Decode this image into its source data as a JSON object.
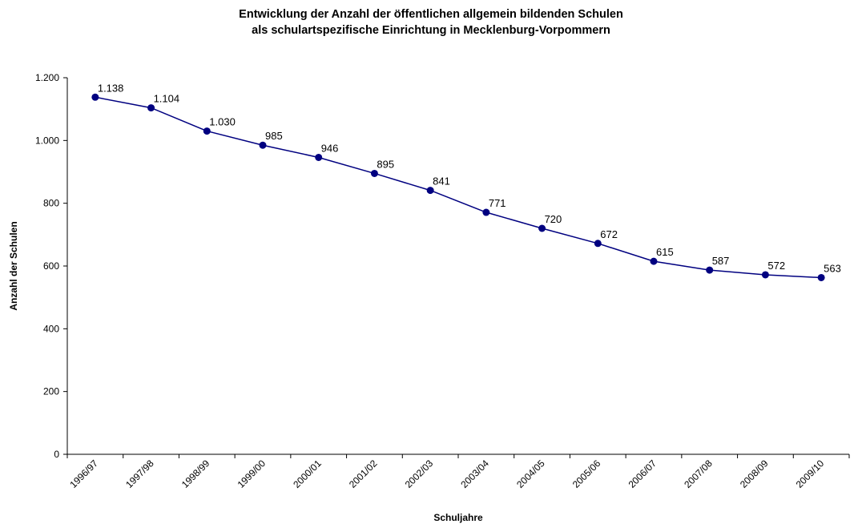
{
  "chart_data": {
    "type": "line",
    "title": [
      "Entwicklung der Anzahl der öffentlichen allgemein bildenden Schulen",
      "als schulartspezifische Einrichtung in Mecklenburg-Vorpommern"
    ],
    "xlabel": "Schuljahre",
    "ylabel": "Anzahl der Schulen",
    "categories": [
      "1996/97",
      "1997/98",
      "1998/99",
      "1999/00",
      "2000/01",
      "2001/02",
      "2002/03",
      "2003/04",
      "2004/05",
      "2005/06",
      "2006/07",
      "2007/08",
      "2008/09",
      "2009/10"
    ],
    "series": [
      {
        "values": [
          1138,
          1104,
          1030,
          985,
          946,
          895,
          841,
          771,
          720,
          672,
          615,
          587,
          572,
          563
        ],
        "labels": [
          "1.138",
          "1.104",
          "1.030",
          "985",
          "946",
          "895",
          "841",
          "771",
          "720",
          "672",
          "615",
          "587",
          "572",
          "563"
        ],
        "color": "#000080"
      }
    ],
    "ylim": [
      0,
      1200
    ],
    "yticks": [
      0,
      200,
      400,
      600,
      800,
      1000,
      1200
    ],
    "ytick_labels": [
      "0",
      "200",
      "400",
      "600",
      "800",
      "1.000",
      "1.200"
    ],
    "grid": false,
    "legend": "none"
  }
}
